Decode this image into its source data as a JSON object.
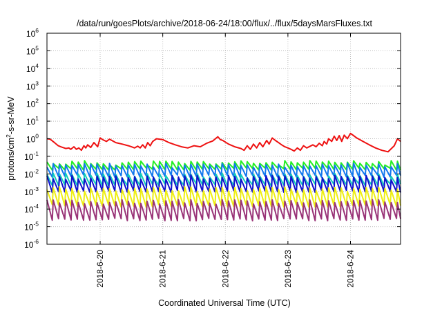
{
  "chart_data": {
    "type": "line",
    "title": "/data/run/goesPlots/archive/2018-06-24/18:00/flux/../flux/5daysMarsFluxes.txt",
    "xlabel": "Coordinated Universal Time (UTC)",
    "ylabel_parts": [
      "protons/cm",
      "2",
      "-s-sr-MeV"
    ],
    "y_scale": "log",
    "ylim": [
      1e-06,
      1000000.0
    ],
    "xlim_days": [
      19.15,
      24.8
    ],
    "y_ticks": [
      {
        "base": "10",
        "exp": "-6",
        "value": 1e-06
      },
      {
        "base": "10",
        "exp": "-5",
        "value": 1e-05
      },
      {
        "base": "10",
        "exp": "-4",
        "value": 0.0001
      },
      {
        "base": "10",
        "exp": "-3",
        "value": 0.001
      },
      {
        "base": "10",
        "exp": "-2",
        "value": 0.01
      },
      {
        "base": "10",
        "exp": "-1",
        "value": 0.1
      },
      {
        "base": "10",
        "exp": "0",
        "value": 1.0
      },
      {
        "base": "10",
        "exp": "1",
        "value": 10.0
      },
      {
        "base": "10",
        "exp": "2",
        "value": 100.0
      },
      {
        "base": "10",
        "exp": "3",
        "value": 1000.0
      },
      {
        "base": "10",
        "exp": "4",
        "value": 10000.0
      },
      {
        "base": "10",
        "exp": "5",
        "value": 100000.0
      },
      {
        "base": "10",
        "exp": "6",
        "value": 1000000.0
      }
    ],
    "x_ticks": [
      {
        "label": "2018-6-20",
        "day": 20
      },
      {
        "label": "2018-6-21",
        "day": 21
      },
      {
        "label": "2018-6-22",
        "day": 22
      },
      {
        "label": "2018-6-23",
        "day": 23
      },
      {
        "label": "2018-6-24",
        "day": 24
      }
    ],
    "grid": true,
    "series": [
      {
        "color": "#ee1111",
        "x": [
          19.15,
          19.2,
          19.27,
          19.33,
          19.37,
          19.45,
          19.5,
          19.53,
          19.58,
          19.62,
          19.66,
          19.7,
          19.74,
          19.77,
          19.8,
          19.85,
          19.9,
          19.96,
          20.0,
          20.05,
          20.1,
          20.15,
          20.25,
          20.35,
          20.45,
          20.5,
          20.55,
          20.6,
          20.64,
          20.68,
          20.72,
          20.76,
          20.8,
          20.84,
          20.9,
          21.0,
          21.1,
          21.2,
          21.3,
          21.4,
          21.5,
          21.6,
          21.7,
          21.8,
          21.88,
          21.92,
          21.96,
          22.05,
          22.15,
          22.25,
          22.3,
          22.35,
          22.4,
          22.45,
          22.5,
          22.55,
          22.6,
          22.66,
          22.7,
          22.75,
          22.8,
          22.85,
          22.9,
          22.95,
          23.0,
          23.05,
          23.1,
          23.15,
          23.2,
          23.25,
          23.3,
          23.4,
          23.45,
          23.5,
          23.55,
          23.58,
          23.62,
          23.65,
          23.7,
          23.74,
          23.78,
          23.82,
          23.86,
          23.9,
          23.95,
          24.0,
          24.05,
          24.1,
          24.2,
          24.3,
          24.4,
          24.5,
          24.6,
          24.7,
          24.75,
          24.8
        ],
        "y": [
          1.0,
          0.95,
          0.6,
          0.4,
          0.35,
          0.28,
          0.3,
          0.25,
          0.35,
          0.25,
          0.3,
          0.22,
          0.4,
          0.3,
          0.45,
          0.32,
          0.6,
          0.35,
          1.1,
          0.85,
          0.7,
          0.95,
          0.6,
          0.5,
          0.4,
          0.35,
          0.3,
          0.38,
          0.3,
          0.45,
          0.3,
          0.6,
          0.4,
          0.7,
          1.0,
          0.9,
          0.6,
          0.45,
          0.35,
          0.3,
          0.4,
          0.35,
          0.55,
          0.75,
          1.3,
          0.9,
          0.8,
          0.5,
          0.35,
          0.28,
          0.22,
          0.4,
          0.25,
          0.5,
          0.3,
          0.6,
          0.35,
          0.8,
          0.5,
          1.1,
          0.8,
          0.6,
          0.45,
          0.35,
          0.3,
          0.25,
          0.2,
          0.3,
          0.22,
          0.4,
          0.3,
          0.45,
          0.35,
          0.55,
          0.4,
          0.7,
          0.5,
          1.0,
          0.7,
          1.4,
          0.8,
          1.5,
          0.7,
          1.6,
          1.0,
          2.0,
          1.5,
          1.1,
          0.7,
          0.45,
          0.3,
          0.22,
          0.18,
          0.4,
          1.0,
          0.7
        ]
      },
      {
        "color": "#22ee22",
        "base": 0.022,
        "amp": 2.0,
        "period": 0.1,
        "noise_seed": 11
      },
      {
        "color": "#1177ee",
        "base": 0.009,
        "amp": 3.5,
        "period": 0.1,
        "noise_seed": 23
      },
      {
        "color": "#11ccbb",
        "base": 0.0028,
        "amp": 3.0,
        "period": 0.1,
        "noise_seed": 37
      },
      {
        "color": "#1111cc",
        "base": 0.0012,
        "amp": 5.5,
        "period": 0.1,
        "noise_seed": 41
      },
      {
        "color": "#eeee11",
        "base": 0.00018,
        "amp": 8.0,
        "period": 0.1,
        "noise_seed": 53
      },
      {
        "color": "#993377",
        "base": 3e-05,
        "amp": 9.0,
        "period": 0.1,
        "noise_seed": 67
      }
    ]
  }
}
